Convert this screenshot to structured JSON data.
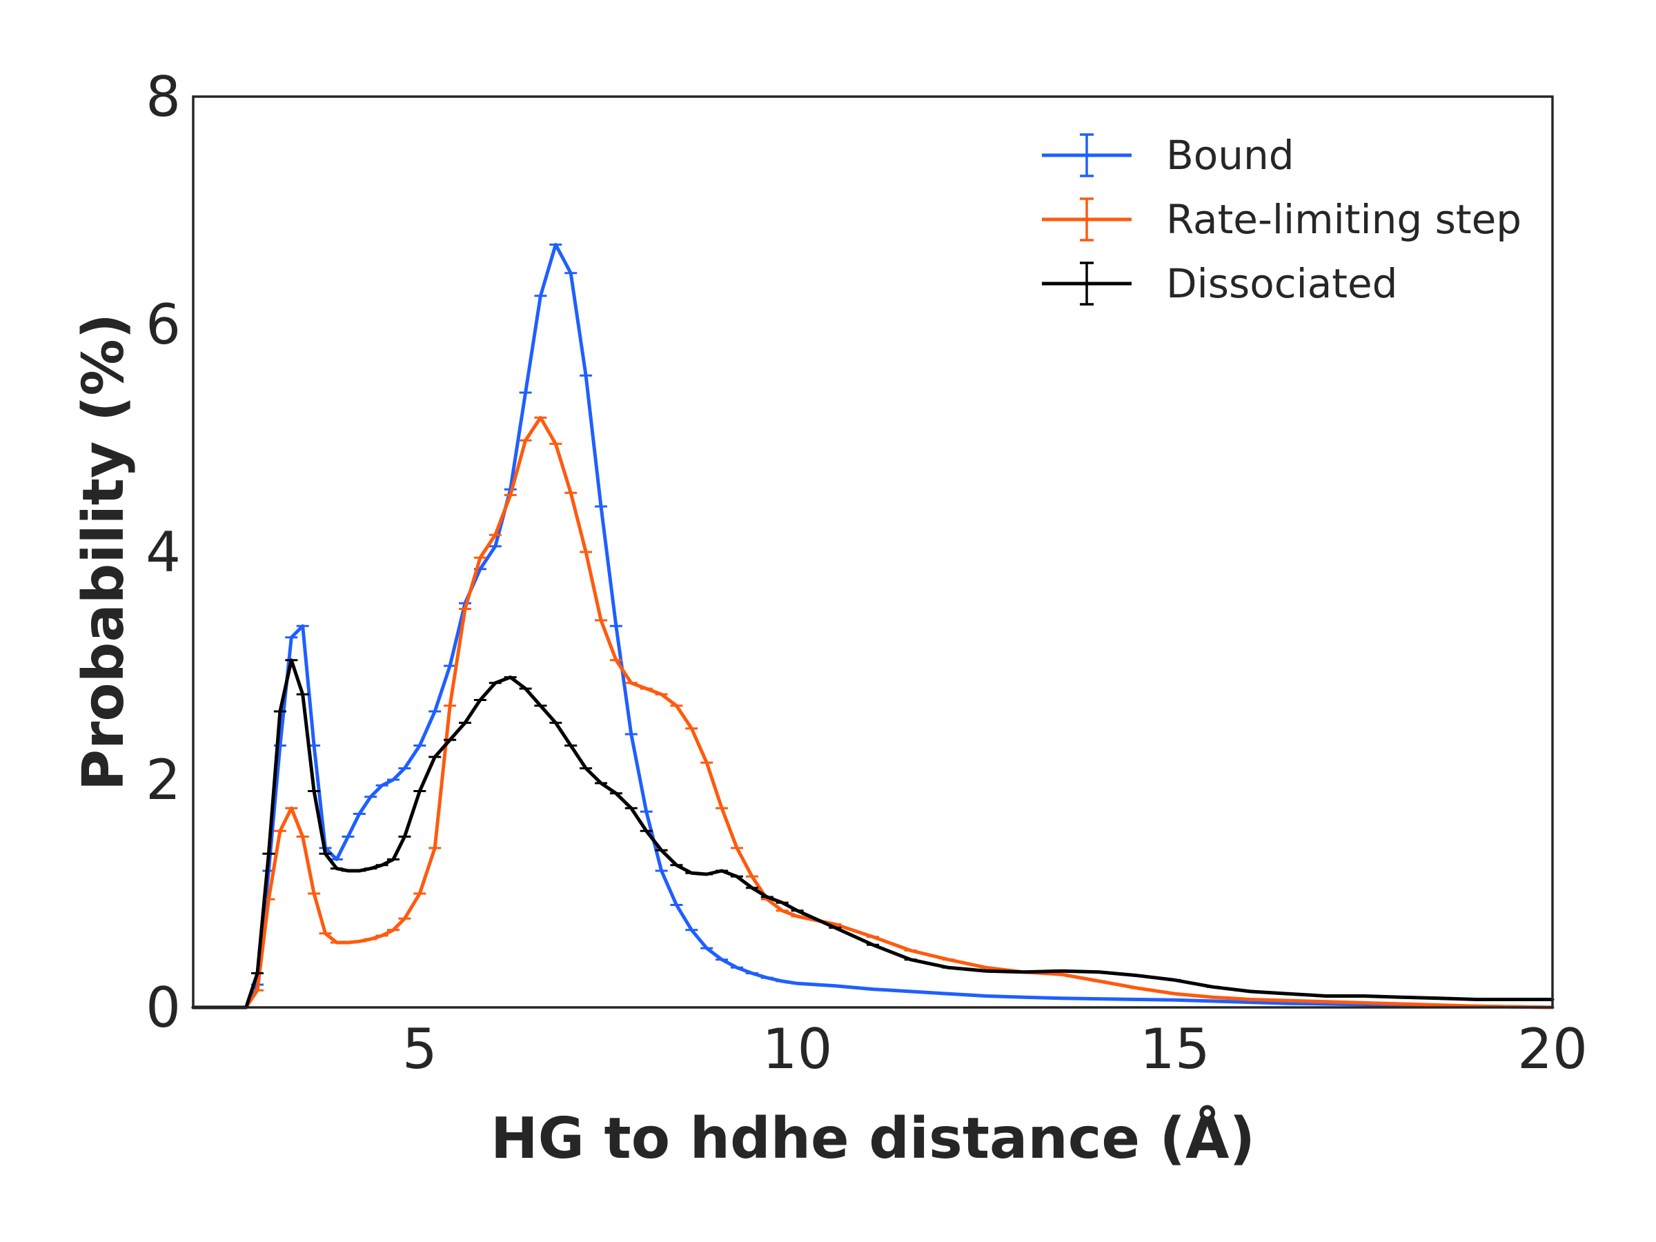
{
  "chart_data": {
    "type": "line",
    "title": "",
    "xlabel": "HG to hdhe distance (Å)",
    "ylabel": "Probability (%)",
    "xlim": [
      2,
      20
    ],
    "ylim": [
      0,
      8
    ],
    "xticks": [
      5,
      10,
      15,
      20
    ],
    "xtick_labels": [
      "5",
      "10",
      "15",
      "20"
    ],
    "yticks": [
      0,
      2,
      4,
      6,
      8
    ],
    "ytick_labels": [
      "0",
      "2",
      "4",
      "6",
      "8"
    ],
    "grid": false,
    "legend_position": "top-right",
    "error_bars": true,
    "series": [
      {
        "name": "Bound",
        "color": "#1f5fff",
        "x": [
          2.0,
          2.7,
          2.85,
          3.0,
          3.15,
          3.3,
          3.45,
          3.6,
          3.75,
          3.9,
          4.05,
          4.2,
          4.35,
          4.5,
          4.65,
          4.8,
          5.0,
          5.2,
          5.4,
          5.6,
          5.8,
          6.0,
          6.2,
          6.4,
          6.6,
          6.8,
          7.0,
          7.2,
          7.4,
          7.6,
          7.8,
          8.0,
          8.2,
          8.4,
          8.6,
          8.8,
          9.0,
          9.2,
          9.4,
          9.6,
          9.8,
          10.0,
          10.5,
          11.0,
          11.5,
          12.0,
          12.5,
          13.0,
          13.5,
          14.0,
          14.5,
          15.0,
          15.5,
          16.0,
          16.5,
          17.0,
          18.0,
          19.0,
          20.0
        ],
        "y": [
          0.0,
          0.0,
          0.2,
          1.2,
          2.3,
          3.25,
          3.35,
          2.3,
          1.4,
          1.3,
          1.5,
          1.7,
          1.85,
          1.95,
          2.0,
          2.1,
          2.3,
          2.6,
          3.0,
          3.55,
          3.85,
          4.05,
          4.55,
          5.4,
          6.25,
          6.7,
          6.45,
          5.55,
          4.4,
          3.35,
          2.4,
          1.72,
          1.2,
          0.9,
          0.68,
          0.52,
          0.42,
          0.35,
          0.3,
          0.26,
          0.23,
          0.21,
          0.19,
          0.16,
          0.14,
          0.12,
          0.1,
          0.09,
          0.08,
          0.075,
          0.07,
          0.065,
          0.055,
          0.045,
          0.035,
          0.03,
          0.02,
          0.01,
          0.0
        ]
      },
      {
        "name": "Rate-limiting step",
        "color": "#ff5a0e",
        "x": [
          2.0,
          2.7,
          2.85,
          3.0,
          3.15,
          3.3,
          3.45,
          3.6,
          3.75,
          3.9,
          4.05,
          4.2,
          4.35,
          4.5,
          4.65,
          4.8,
          5.0,
          5.2,
          5.4,
          5.6,
          5.8,
          6.0,
          6.2,
          6.4,
          6.6,
          6.8,
          7.0,
          7.2,
          7.4,
          7.6,
          7.8,
          8.0,
          8.2,
          8.4,
          8.6,
          8.8,
          9.0,
          9.2,
          9.4,
          9.6,
          9.8,
          10.0,
          10.5,
          11.0,
          11.5,
          12.0,
          12.5,
          13.0,
          13.5,
          14.0,
          14.5,
          15.0,
          15.5,
          16.0,
          16.5,
          17.0,
          17.5,
          18.0,
          19.0,
          20.0
        ],
        "y": [
          0.0,
          0.0,
          0.15,
          0.95,
          1.55,
          1.75,
          1.5,
          1.0,
          0.65,
          0.57,
          0.57,
          0.58,
          0.6,
          0.63,
          0.68,
          0.78,
          1.0,
          1.4,
          2.65,
          3.5,
          3.95,
          4.15,
          4.5,
          4.98,
          5.18,
          4.95,
          4.52,
          4.0,
          3.4,
          3.05,
          2.85,
          2.8,
          2.75,
          2.65,
          2.45,
          2.15,
          1.75,
          1.4,
          1.15,
          0.95,
          0.85,
          0.8,
          0.73,
          0.62,
          0.5,
          0.42,
          0.35,
          0.31,
          0.29,
          0.23,
          0.17,
          0.12,
          0.09,
          0.07,
          0.06,
          0.05,
          0.04,
          0.03,
          0.01,
          0.0
        ]
      },
      {
        "name": "Dissociated",
        "color": "#000000",
        "x": [
          2.0,
          2.7,
          2.85,
          3.0,
          3.15,
          3.3,
          3.45,
          3.6,
          3.75,
          3.9,
          4.05,
          4.2,
          4.35,
          4.5,
          4.65,
          4.8,
          5.0,
          5.2,
          5.4,
          5.6,
          5.8,
          6.0,
          6.2,
          6.4,
          6.6,
          6.8,
          7.0,
          7.2,
          7.4,
          7.6,
          7.8,
          8.0,
          8.2,
          8.4,
          8.6,
          8.8,
          9.0,
          9.2,
          9.4,
          9.6,
          9.8,
          10.0,
          10.5,
          11.0,
          11.5,
          12.0,
          12.5,
          13.0,
          13.5,
          14.0,
          14.5,
          15.0,
          15.5,
          16.0,
          16.5,
          17.0,
          17.5,
          18.0,
          18.5,
          19.0,
          20.0
        ],
        "y": [
          0.0,
          0.0,
          0.3,
          1.35,
          2.6,
          3.05,
          2.75,
          1.9,
          1.35,
          1.22,
          1.2,
          1.2,
          1.22,
          1.25,
          1.3,
          1.5,
          1.9,
          2.2,
          2.35,
          2.5,
          2.7,
          2.85,
          2.9,
          2.8,
          2.65,
          2.5,
          2.3,
          2.1,
          1.97,
          1.88,
          1.75,
          1.55,
          1.38,
          1.25,
          1.18,
          1.17,
          1.2,
          1.15,
          1.05,
          0.97,
          0.92,
          0.85,
          0.7,
          0.55,
          0.42,
          0.35,
          0.32,
          0.31,
          0.32,
          0.31,
          0.28,
          0.24,
          0.18,
          0.14,
          0.12,
          0.1,
          0.1,
          0.09,
          0.08,
          0.07,
          0.07
        ]
      }
    ]
  }
}
